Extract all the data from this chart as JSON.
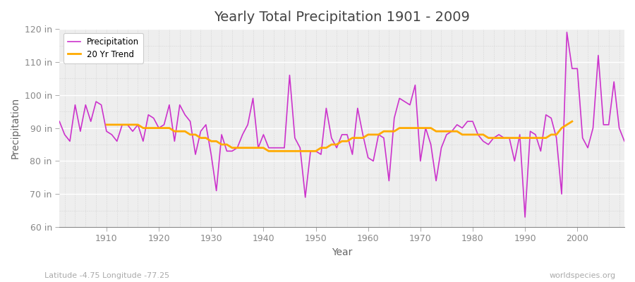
{
  "title": "Yearly Total Precipitation 1901 - 2009",
  "xlabel": "Year",
  "ylabel": "Precipitation",
  "lat_lon_label": "Latitude -4.75 Longitude -77.25",
  "source_label": "worldspecies.org",
  "fig_bg_color": "#ffffff",
  "plot_bg_color": "#eeeeee",
  "precip_color": "#cc33cc",
  "trend_color": "#ffaa00",
  "grid_color": "#ffffff",
  "grid_color_minor": "#dddddd",
  "ylim": [
    60,
    120
  ],
  "yticks": [
    60,
    70,
    80,
    90,
    100,
    110,
    120
  ],
  "xlim": [
    1901,
    2009
  ],
  "xticks": [
    1910,
    1920,
    1930,
    1940,
    1950,
    1960,
    1970,
    1980,
    1990,
    2000
  ],
  "years": [
    1901,
    1902,
    1903,
    1904,
    1905,
    1906,
    1907,
    1908,
    1909,
    1910,
    1911,
    1912,
    1913,
    1914,
    1915,
    1916,
    1917,
    1918,
    1919,
    1920,
    1921,
    1922,
    1923,
    1924,
    1925,
    1926,
    1927,
    1928,
    1929,
    1930,
    1931,
    1932,
    1933,
    1934,
    1935,
    1936,
    1937,
    1938,
    1939,
    1940,
    1941,
    1942,
    1943,
    1944,
    1945,
    1946,
    1947,
    1948,
    1949,
    1950,
    1951,
    1952,
    1953,
    1954,
    1955,
    1956,
    1957,
    1958,
    1959,
    1960,
    1961,
    1962,
    1963,
    1964,
    1965,
    1966,
    1967,
    1968,
    1969,
    1970,
    1971,
    1972,
    1973,
    1974,
    1975,
    1976,
    1977,
    1978,
    1979,
    1980,
    1981,
    1982,
    1983,
    1984,
    1985,
    1986,
    1987,
    1988,
    1989,
    1990,
    1991,
    1992,
    1993,
    1994,
    1995,
    1996,
    1997,
    1998,
    1999,
    2000,
    2001,
    2002,
    2003,
    2004,
    2005,
    2006,
    2007,
    2008,
    2009
  ],
  "precip": [
    92,
    88,
    86,
    97,
    89,
    97,
    92,
    98,
    97,
    89,
    88,
    86,
    91,
    91,
    89,
    91,
    86,
    94,
    93,
    90,
    91,
    97,
    86,
    97,
    94,
    92,
    82,
    89,
    91,
    82,
    71,
    88,
    83,
    83,
    84,
    88,
    91,
    99,
    84,
    88,
    84,
    84,
    84,
    84,
    106,
    87,
    84,
    69,
    83,
    83,
    82,
    96,
    87,
    84,
    88,
    88,
    82,
    96,
    88,
    81,
    80,
    88,
    87,
    74,
    93,
    99,
    98,
    97,
    103,
    80,
    90,
    85,
    74,
    84,
    88,
    89,
    91,
    90,
    92,
    92,
    88,
    86,
    85,
    87,
    88,
    87,
    87,
    80,
    88,
    63,
    89,
    88,
    83,
    94,
    93,
    87,
    70,
    119,
    108,
    108,
    87,
    84,
    90,
    112,
    91,
    91,
    104,
    90,
    86
  ],
  "trend": [
    null,
    null,
    null,
    null,
    null,
    null,
    null,
    null,
    null,
    91,
    91,
    91,
    91,
    91,
    91,
    91,
    90,
    90,
    90,
    90,
    90,
    90,
    89,
    89,
    89,
    88,
    88,
    87,
    87,
    86,
    86,
    85,
    85,
    84,
    84,
    84,
    84,
    84,
    84,
    84,
    83,
    83,
    83,
    83,
    83,
    83,
    83,
    83,
    83,
    83,
    84,
    84,
    85,
    85,
    86,
    86,
    87,
    87,
    87,
    88,
    88,
    88,
    89,
    89,
    89,
    90,
    90,
    90,
    90,
    90,
    90,
    90,
    89,
    89,
    89,
    89,
    89,
    88,
    88,
    88,
    88,
    88,
    87,
    87,
    87,
    87,
    87,
    87,
    87,
    87,
    87,
    87,
    87,
    87,
    88,
    88,
    90,
    91,
    92,
    null,
    null,
    null,
    null,
    null,
    null,
    null,
    null,
    null,
    null
  ]
}
